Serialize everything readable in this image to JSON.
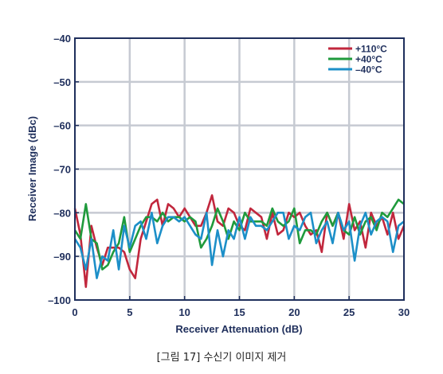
{
  "caption": "[그림 17] 수신기 이미지 제거",
  "chart_data": {
    "type": "line",
    "title": "",
    "xlabel": "Receiver Attenuation (dB)",
    "ylabel": "Receiver Image (dBc)",
    "xlim": [
      0,
      30
    ],
    "ylim": [
      -100,
      -40
    ],
    "x_ticks": [
      0,
      5,
      10,
      15,
      20,
      25,
      30
    ],
    "x_tick_labels": [
      "0",
      "5",
      "10",
      "15",
      "20",
      "25",
      "30"
    ],
    "y_ticks": [
      -40,
      -50,
      -60,
      -70,
      -80,
      -90,
      -100
    ],
    "y_tick_labels": [
      "–40",
      "–50",
      "–60",
      "–70",
      "–80",
      "–90",
      "–100"
    ],
    "grid": true,
    "legend_position": "top-right",
    "x": [
      0,
      0.5,
      1,
      1.5,
      2,
      2.5,
      3,
      3.5,
      4,
      4.5,
      5,
      5.5,
      6,
      6.5,
      7,
      7.5,
      8,
      8.5,
      9,
      9.5,
      10,
      10.5,
      11,
      11.5,
      12,
      12.5,
      13,
      13.5,
      14,
      14.5,
      15,
      15.5,
      16,
      16.5,
      17,
      17.5,
      18,
      18.5,
      19,
      19.5,
      20,
      20.5,
      21,
      21.5,
      22,
      22.5,
      23,
      23.5,
      24,
      24.5,
      25,
      25.5,
      26,
      26.5,
      27,
      27.5,
      28,
      28.5,
      29,
      29.5,
      30
    ],
    "series": [
      {
        "name": "+110°C",
        "color": "#c1273d",
        "values": [
          -79,
          -85,
          -97,
          -83,
          -88,
          -92,
          -88,
          -88,
          -88,
          -89,
          -93,
          -95,
          -86,
          -82,
          -78,
          -77,
          -83,
          -78,
          -79,
          -81,
          -79,
          -81,
          -83,
          -83,
          -80,
          -76,
          -82,
          -83,
          -79,
          -80,
          -83,
          -84,
          -79,
          -80,
          -81,
          -86,
          -80,
          -85,
          -84,
          -80,
          -81,
          -80,
          -83,
          -85,
          -84,
          -89,
          -80,
          -83,
          -80,
          -86,
          -78,
          -84,
          -82,
          -88,
          -80,
          -83,
          -81,
          -85,
          -80,
          -86,
          -83
        ]
      },
      {
        "name": "+40°C",
        "color": "#1f9a3c",
        "values": [
          -84,
          -86,
          -78,
          -86,
          -87,
          -93,
          -92,
          -89,
          -87,
          -81,
          -89,
          -86,
          -83,
          -81,
          -81,
          -82,
          -80,
          -82,
          -81,
          -81,
          -82,
          -81,
          -82,
          -88,
          -86,
          -83,
          -79,
          -82,
          -86,
          -82,
          -84,
          -80,
          -82,
          -82,
          -82,
          -83,
          -79,
          -82,
          -83,
          -82,
          -79,
          -87,
          -84,
          -84,
          -85,
          -82,
          -80,
          -83,
          -80,
          -84,
          -85,
          -81,
          -85,
          -82,
          -81,
          -84,
          -80,
          -81,
          -79,
          -77,
          -78
        ]
      },
      {
        "name": "–40°C",
        "color": "#1c8fc8",
        "values": [
          -86,
          -88,
          -93,
          -86,
          -95,
          -90,
          -91,
          -84,
          -93,
          -83,
          -88,
          -83,
          -82,
          -86,
          -80,
          -87,
          -83,
          -81,
          -81,
          -82,
          -81,
          -83,
          -85,
          -86,
          -80,
          -92,
          -84,
          -90,
          -84,
          -86,
          -81,
          -86,
          -81,
          -83,
          -83,
          -84,
          -82,
          -80,
          -80,
          -86,
          -83,
          -84,
          -81,
          -80,
          -87,
          -84,
          -82,
          -87,
          -80,
          -84,
          -82,
          -91,
          -83,
          -80,
          -85,
          -82,
          -81,
          -82,
          -89,
          -83,
          -82
        ]
      }
    ]
  }
}
